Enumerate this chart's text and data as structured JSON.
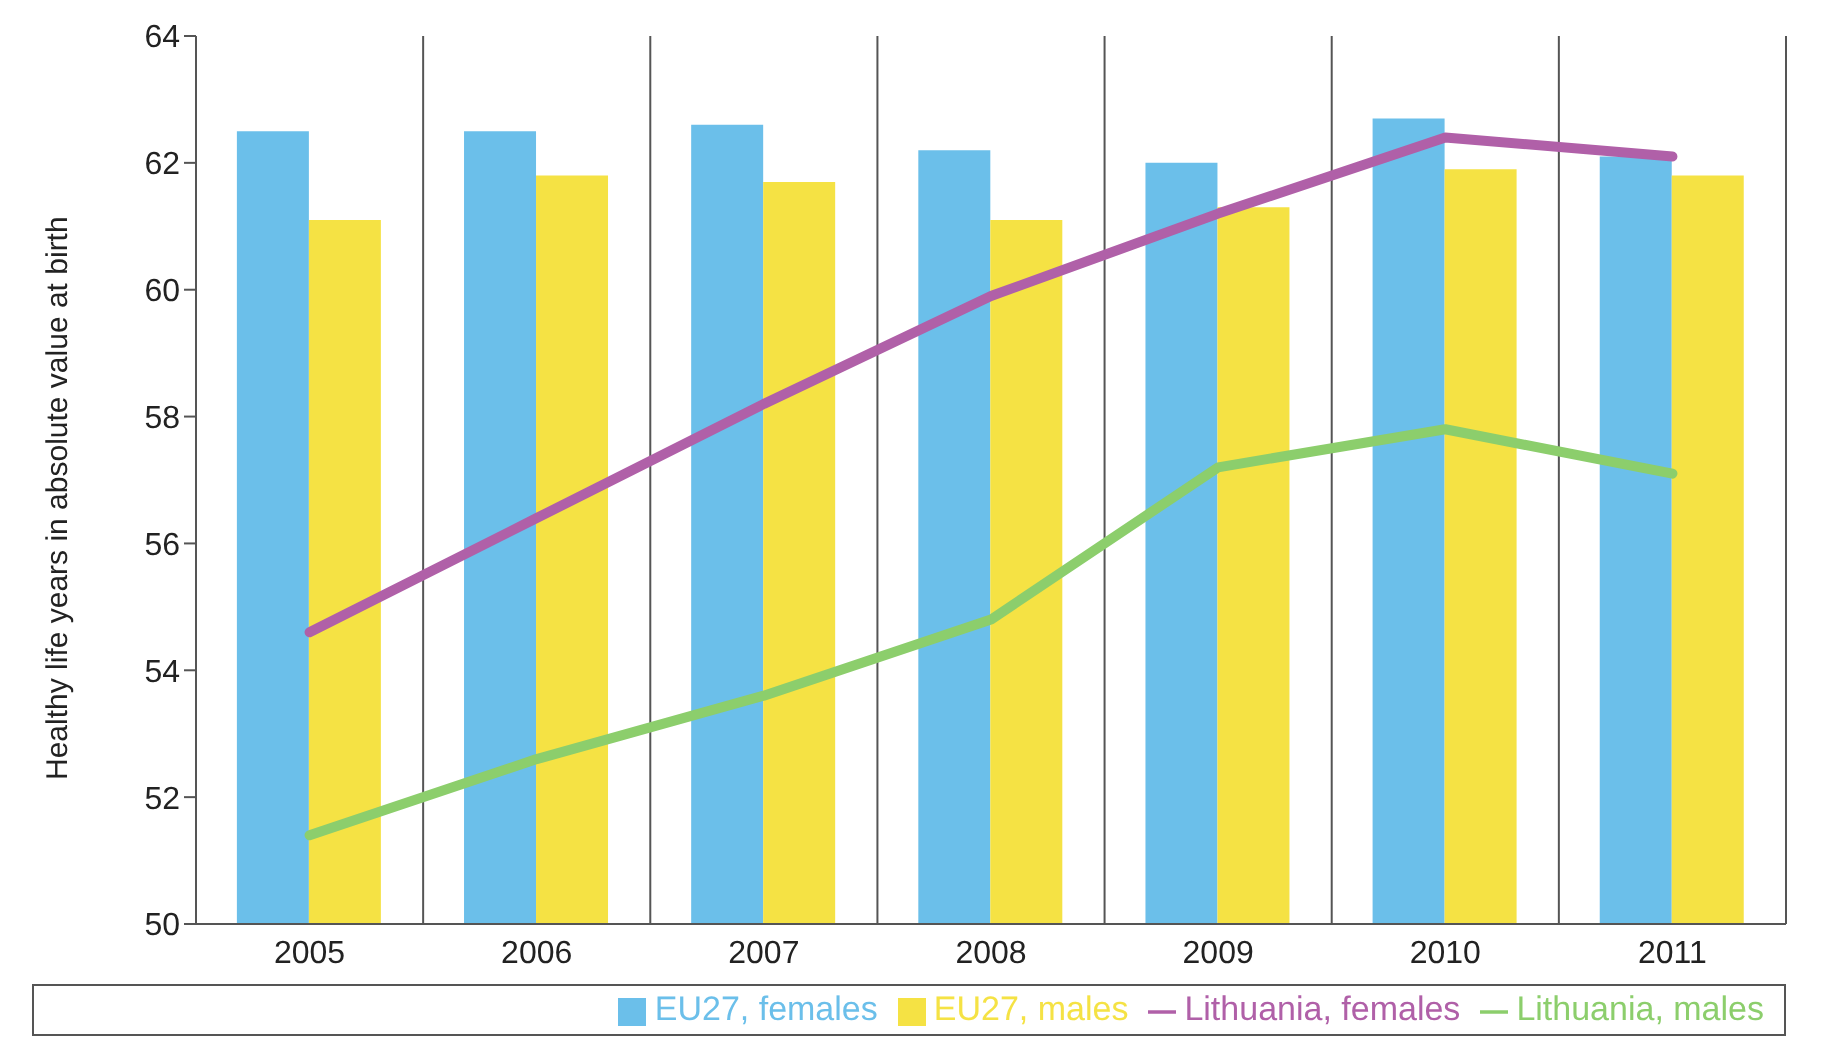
{
  "chart_data": {
    "type": "bar",
    "ylabel": "Healthy life years in absolute value at birth",
    "categories": [
      "2005",
      "2006",
      "2007",
      "2008",
      "2009",
      "2010",
      "2011"
    ],
    "series": [
      {
        "name": "EU27, females",
        "color": "#6bbfea",
        "values": [
          62.5,
          62.5,
          62.6,
          62.2,
          62.0,
          62.7,
          62.1
        ]
      },
      {
        "name": "EU27, males",
        "color": "#f5e244",
        "values": [
          61.1,
          61.8,
          61.7,
          61.1,
          61.3,
          61.9,
          61.8
        ]
      },
      {
        "name": "Lithuania, females",
        "type": "line",
        "color": "#b060a8",
        "values": [
          54.6,
          56.4,
          58.2,
          59.9,
          61.2,
          62.4,
          62.1
        ]
      },
      {
        "name": "Lithuania, males",
        "type": "line",
        "color": "#8cce6c",
        "values": [
          51.4,
          52.6,
          53.6,
          54.8,
          57.2,
          57.8,
          57.1
        ]
      }
    ],
    "ylim": [
      50,
      64
    ],
    "yticks": [
      50,
      52,
      54,
      56,
      58,
      60,
      62,
      64
    ],
    "grid": "x",
    "legend": "bottom",
    "marker": "none",
    "line_style": "solid"
  }
}
